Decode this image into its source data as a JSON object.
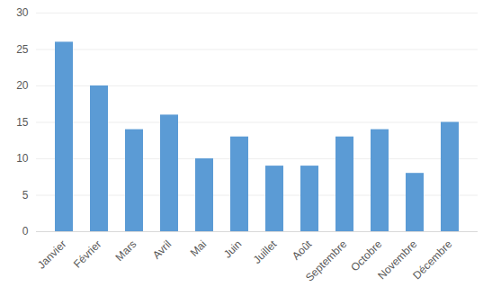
{
  "chart_data": {
    "type": "bar",
    "categories": [
      "Janvier",
      "Février",
      "Mars",
      "Avril",
      "Mai",
      "Juin",
      "Juillet",
      "Août",
      "Septembre",
      "Octobre",
      "Novembre",
      "Décembre"
    ],
    "values": [
      26,
      20,
      14,
      16,
      10,
      13,
      9,
      9,
      13,
      14,
      8,
      15
    ],
    "color": "#5b9bd5",
    "ylim": [
      0,
      30
    ],
    "yticks": [
      0,
      5,
      10,
      15,
      20,
      25,
      30
    ],
    "grid": true
  }
}
